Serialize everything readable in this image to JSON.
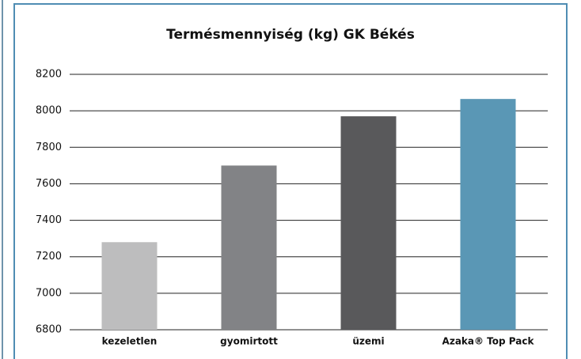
{
  "chart_data": {
    "type": "bar",
    "title": "Termésmennyiség (kg) GK Békés",
    "categories": [
      "kezeletlen",
      "gyomirtott",
      "üzemi",
      "Azaka® Top Pack"
    ],
    "values": [
      7280,
      7700,
      7970,
      8065
    ],
    "colors": [
      "#bdbdbe",
      "#828386",
      "#59595b",
      "#5a97b5"
    ],
    "ylim": [
      6800,
      8200
    ],
    "yticks": [
      6800,
      7000,
      7200,
      7400,
      7600,
      7800,
      8000,
      8200
    ],
    "grid": true
  }
}
